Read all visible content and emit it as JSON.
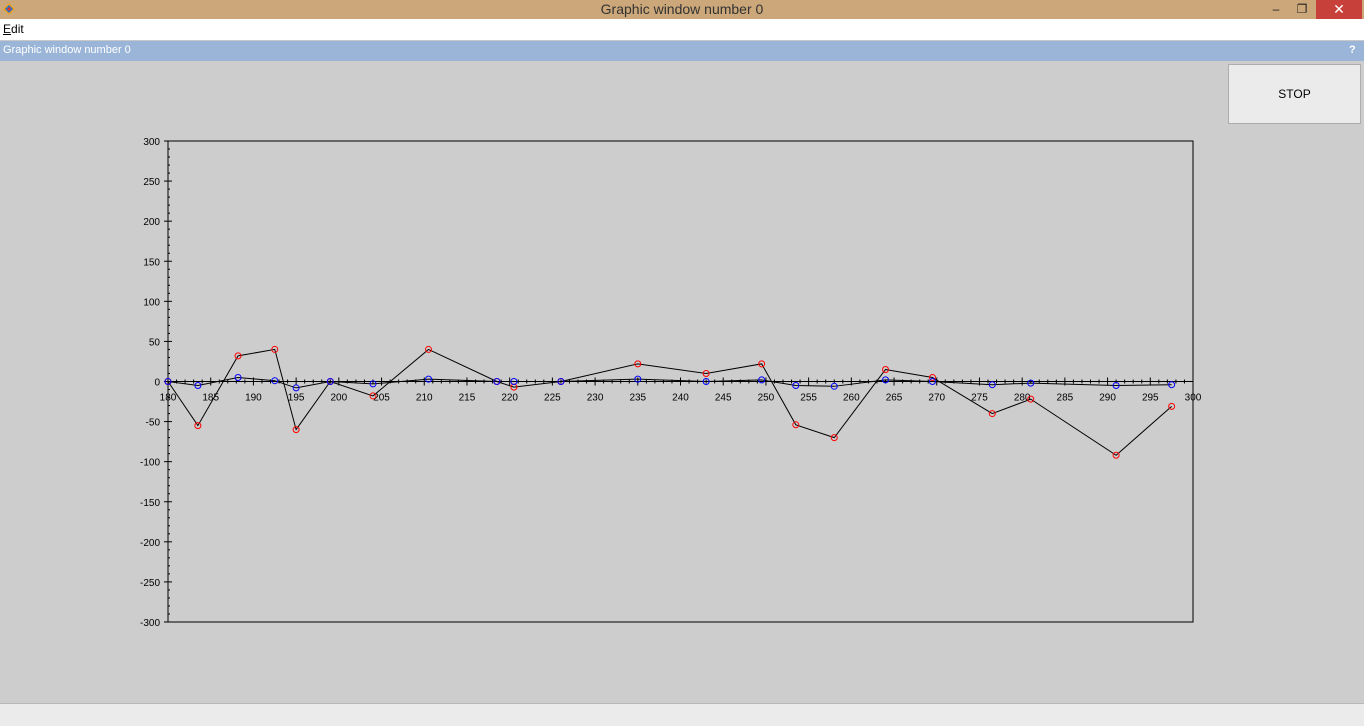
{
  "window": {
    "title": "Graphic window number 0",
    "controls": {
      "minimize": "–",
      "maximize": "❐",
      "close": "✕"
    }
  },
  "menubar": {
    "items": [
      {
        "label": "Edit",
        "mnemonic": "E",
        "rest": "dit"
      }
    ]
  },
  "panel": {
    "title": "Graphic window number 0",
    "help": "?"
  },
  "stop_button": {
    "label": "STOP"
  },
  "icons": {
    "app": "scilab-app-icon",
    "help": "help-icon"
  },
  "colors": {
    "titlebar": "#cba779",
    "close": "#c7403a",
    "panel_header": "#9ab5d8",
    "series_red": "#ff0000",
    "series_blue": "#0000ff",
    "line": "#000000"
  },
  "chart_data": {
    "type": "line",
    "title": "",
    "xlabel": "",
    "ylabel": "",
    "xlim": [
      180,
      300
    ],
    "ylim": [
      -300,
      300
    ],
    "x_ticks": [
      "180",
      "185",
      "190",
      "195",
      "200",
      "205",
      "210",
      "215",
      "220",
      "225",
      "230",
      "235",
      "240",
      "245",
      "250",
      "255",
      "260",
      "265",
      "270",
      "275",
      "280",
      "285",
      "290",
      "295",
      "300"
    ],
    "y_ticks": [
      "300",
      "250",
      "200",
      "150",
      "100",
      "50",
      "0",
      "-50",
      "-100",
      "-150",
      "-200",
      "-250",
      "-300"
    ],
    "grid": false,
    "series": [
      {
        "color": "#ff0000",
        "points": [
          [
            180,
            0
          ],
          [
            183.5,
            -55
          ],
          [
            188.2,
            32
          ],
          [
            192.5,
            40
          ],
          [
            195,
            -60
          ],
          [
            199,
            0
          ],
          [
            204,
            -18
          ],
          [
            210.5,
            40
          ],
          [
            218.5,
            0
          ],
          [
            220.5,
            -7
          ],
          [
            226,
            0
          ],
          [
            235,
            22
          ],
          [
            243,
            10
          ],
          [
            249.5,
            22
          ],
          [
            253.5,
            -54
          ],
          [
            258,
            -70
          ],
          [
            264,
            15
          ],
          [
            269.5,
            5
          ],
          [
            276.5,
            -40
          ],
          [
            281,
            -22
          ],
          [
            291,
            -92
          ],
          [
            297.5,
            -31
          ]
        ]
      },
      {
        "color": "#0000ff",
        "points": [
          [
            180,
            0
          ],
          [
            183.5,
            -5
          ],
          [
            188.2,
            5
          ],
          [
            192.5,
            1
          ],
          [
            195,
            -8
          ],
          [
            199,
            0
          ],
          [
            204,
            -3
          ],
          [
            210.5,
            3
          ],
          [
            218.5,
            0
          ],
          [
            220.5,
            0
          ],
          [
            226,
            0
          ],
          [
            235,
            3
          ],
          [
            243,
            0
          ],
          [
            249.5,
            2
          ],
          [
            253.5,
            -5
          ],
          [
            258,
            -6
          ],
          [
            264,
            2
          ],
          [
            269.5,
            0
          ],
          [
            276.5,
            -4
          ],
          [
            281,
            -2
          ],
          [
            291,
            -5
          ],
          [
            297.5,
            -4
          ]
        ]
      }
    ]
  }
}
